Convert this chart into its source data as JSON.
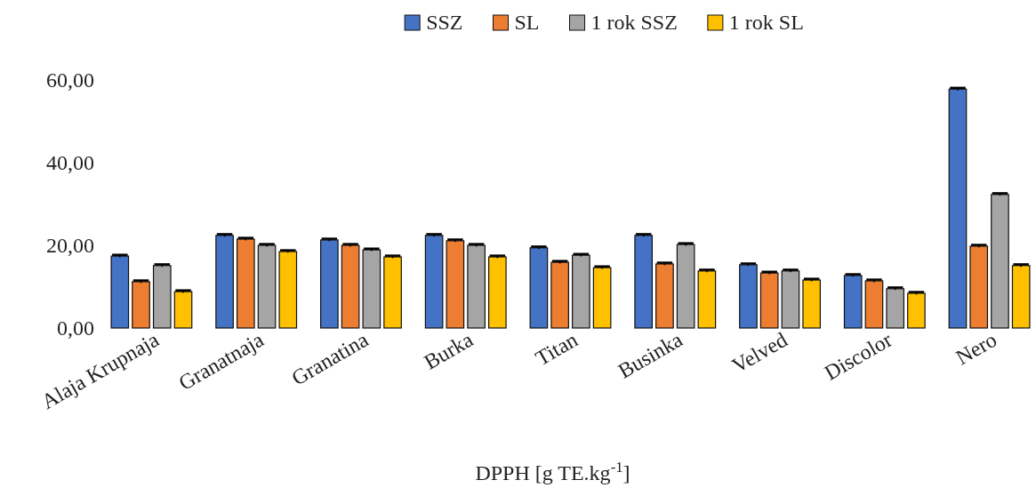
{
  "chart_data": {
    "type": "bar",
    "xlabel": "DPPH [g TE.kg$^{-1}$]",
    "categories": [
      "Alaja Krupnaja",
      "Granatnaja",
      "Granatina",
      "Burka",
      "Titan",
      "Businka",
      "Velved",
      "Discolor",
      "Nero"
    ],
    "series": [
      {
        "name": "SSZ",
        "color": "#4472c4",
        "values": [
          17.4,
          22.4,
          21.3,
          22.4,
          19.4,
          22.4,
          15.3,
          12.7,
          57.8
        ],
        "errors": [
          0.3,
          0.3,
          0.3,
          0.3,
          0.3,
          0.3,
          0.3,
          0.3,
          0.3
        ]
      },
      {
        "name": "SL",
        "color": "#ed7d31",
        "values": [
          11.2,
          21.5,
          20.0,
          21.1,
          15.9,
          15.5,
          13.3,
          11.4,
          19.8
        ],
        "errors": [
          0.3,
          0.3,
          0.3,
          0.3,
          0.3,
          0.3,
          0.3,
          0.3,
          0.3
        ]
      },
      {
        "name": "1 rok SSZ",
        "color": "#a5a5a5",
        "values": [
          15.1,
          20.0,
          18.9,
          20.0,
          17.6,
          20.2,
          13.8,
          9.5,
          32.3
        ],
        "errors": [
          0.3,
          0.3,
          0.3,
          0.3,
          0.3,
          0.3,
          0.3,
          0.3,
          0.3
        ]
      },
      {
        "name": "1 rok SL",
        "color": "#ffc000",
        "values": [
          8.8,
          18.5,
          17.2,
          17.2,
          14.6,
          13.8,
          11.6,
          8.4,
          15.1
        ],
        "errors": [
          0.3,
          0.3,
          0.3,
          0.3,
          0.3,
          0.3,
          0.3,
          0.3,
          0.3
        ]
      }
    ],
    "ylim": [
      0,
      60
    ],
    "yticks": [
      {
        "value": 0,
        "label": "0,00"
      },
      {
        "value": 20,
        "label": "20,00"
      },
      {
        "value": 40,
        "label": "40,00"
      },
      {
        "value": 60,
        "label": "60,00"
      }
    ],
    "grid": false,
    "legend": "top"
  }
}
